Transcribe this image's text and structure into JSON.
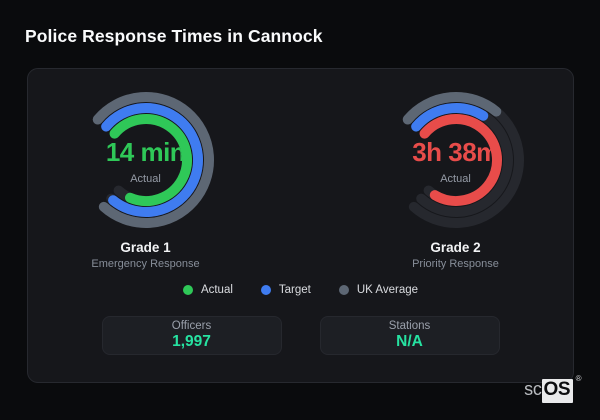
{
  "page_title": "Police Response Times in Cannock",
  "colors": {
    "page_bg": "#0a0b0d",
    "card_bg": "#16171b",
    "track": "#26282e",
    "actual_green": "#2fc858",
    "target_blue": "#3f7cf0",
    "uk_average_gray": "#5d6774",
    "actual_red": "#e84c4a",
    "stat_value_mint": "#26e2a1"
  },
  "chart_data": [
    {
      "type": "radialBar",
      "name": "Grade 1",
      "subtitle": "Emergency Response",
      "center_value": "14 min",
      "center_label": "Actual",
      "value_color": "#2fc858",
      "start_angle": -50,
      "max_angle": 272,
      "rings": [
        {
          "name": "UK Average",
          "color": "#5d6774",
          "pct": 100
        },
        {
          "name": "Target",
          "color": "#3f7cf0",
          "pct": 99
        },
        {
          "name": "Actual",
          "color": "#2fc858",
          "pct": 93
        }
      ]
    },
    {
      "type": "radialBar",
      "name": "Grade 2",
      "subtitle": "Priority Response",
      "center_value": "3h 38m",
      "center_label": "Actual",
      "value_color": "#e84c4a",
      "start_angle": -50,
      "max_angle": 272,
      "rings": [
        {
          "name": "UK Average",
          "color": "#5d6774",
          "pct": 33
        },
        {
          "name": "Target",
          "color": "#3f7cf0",
          "pct": 30
        },
        {
          "name": "Actual",
          "color": "#e84c4a",
          "pct": 96
        }
      ]
    }
  ],
  "legend": {
    "items": [
      {
        "label": "Actual",
        "color": "#2fc858"
      },
      {
        "label": "Target",
        "color": "#3f7cf0"
      },
      {
        "label": "UK Average",
        "color": "#5d6774"
      }
    ]
  },
  "stats": [
    {
      "label": "Officers",
      "value": "1,997"
    },
    {
      "label": "Stations",
      "value": "N/A"
    }
  ],
  "logo": {
    "prefix": "sc",
    "suffix": "OS",
    "reg": "®"
  }
}
